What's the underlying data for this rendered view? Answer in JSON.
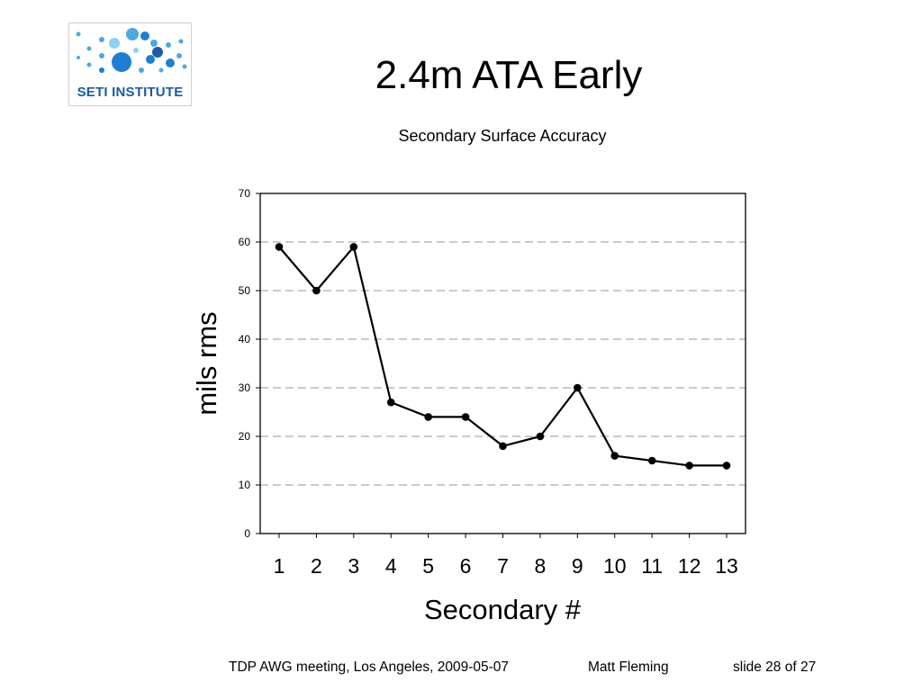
{
  "logo": {
    "text": "SETI INSTITUTE",
    "color": "#1a5aa8",
    "accent": "#4fa8e0"
  },
  "slide": {
    "title": "2.4m  ATA Early"
  },
  "chart_data": {
    "type": "line",
    "title": "Secondary Surface Accuracy",
    "xlabel": "Secondary #",
    "ylabel": "mils rms",
    "categories": [
      "1",
      "2",
      "3",
      "4",
      "5",
      "6",
      "7",
      "8",
      "9",
      "10",
      "11",
      "12",
      "13"
    ],
    "values": [
      59,
      50,
      59,
      27,
      24,
      24,
      18,
      20,
      30,
      16,
      15,
      14,
      14
    ],
    "ylim": [
      0,
      70
    ],
    "yticks": [
      "0",
      "10",
      "20",
      "30",
      "40",
      "50",
      "60",
      "70"
    ],
    "grid": true,
    "grid_style": "dashed",
    "line_color": "#000000",
    "marker": "filled-circle"
  },
  "footer": {
    "meeting": "TDP AWG meeting, Los Angeles, 2009-05-07",
    "author": "Matt Fleming",
    "slide_number": "slide 28 of 27"
  }
}
